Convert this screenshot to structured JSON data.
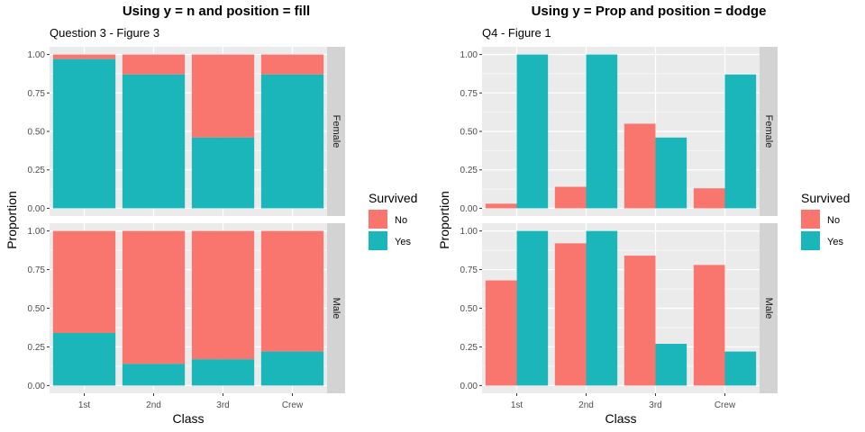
{
  "titles": {
    "left": "Using y = n and position = fill",
    "right": "Using y = Prop and position = dodge"
  },
  "colors": {
    "No": "#F8766D",
    "Yes": "#1AB6BA",
    "panel_bg": "#EBEBEB",
    "strip_bg": "#D3D3D3",
    "grid": "#FFFFFF"
  },
  "chart_data": [
    {
      "type": "bar",
      "position": "fill",
      "subtitle": "Question 3 - Figure 3",
      "xlabel": "Class",
      "ylabel": "Proportion",
      "categories": [
        "1st",
        "2nd",
        "3rd",
        "Crew"
      ],
      "ylim": [
        0,
        1
      ],
      "yticks": [
        "0.00",
        "0.25",
        "0.50",
        "0.75",
        "1.00"
      ],
      "legend": {
        "title": "Survived",
        "entries": [
          "No",
          "Yes"
        ],
        "placement": "right"
      },
      "facets": [
        {
          "label": "Female",
          "series": [
            {
              "name": "No",
              "values": [
                0.03,
                0.13,
                0.54,
                0.13
              ]
            },
            {
              "name": "Yes",
              "values": [
                0.97,
                0.87,
                0.46,
                0.87
              ]
            }
          ]
        },
        {
          "label": "Male",
          "series": [
            {
              "name": "No",
              "values": [
                0.66,
                0.86,
                0.83,
                0.78
              ]
            },
            {
              "name": "Yes",
              "values": [
                0.34,
                0.14,
                0.17,
                0.22
              ]
            }
          ]
        }
      ]
    },
    {
      "type": "bar",
      "position": "dodge",
      "subtitle": "Q4 - Figure 1",
      "xlabel": "Class",
      "ylabel": "Proportion",
      "categories": [
        "1st",
        "2nd",
        "3rd",
        "Crew"
      ],
      "ylim": [
        0,
        1
      ],
      "yticks": [
        "0.00",
        "0.25",
        "0.50",
        "0.75",
        "1.00"
      ],
      "legend": {
        "title": "Survived",
        "entries": [
          "No",
          "Yes"
        ],
        "placement": "right"
      },
      "facets": [
        {
          "label": "Female",
          "series": [
            {
              "name": "No",
              "values": [
                0.03,
                0.14,
                0.55,
                0.13
              ]
            },
            {
              "name": "Yes",
              "values": [
                1.0,
                1.0,
                0.46,
                0.87
              ]
            }
          ]
        },
        {
          "label": "Male",
          "series": [
            {
              "name": "No",
              "values": [
                0.68,
                0.92,
                0.84,
                0.78
              ]
            },
            {
              "name": "Yes",
              "values": [
                1.0,
                1.0,
                0.27,
                0.22
              ]
            }
          ]
        }
      ]
    }
  ]
}
